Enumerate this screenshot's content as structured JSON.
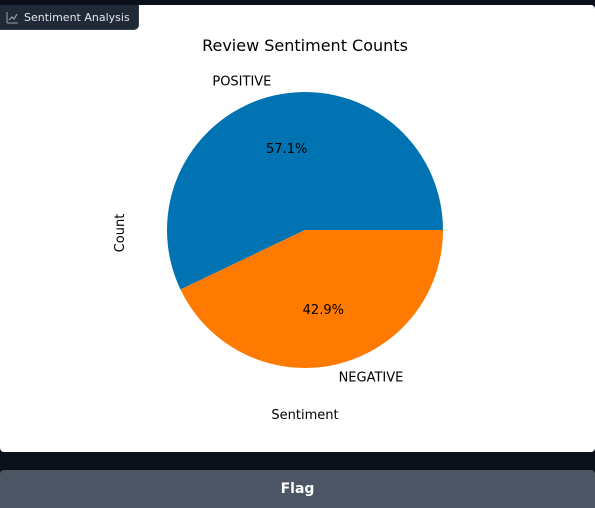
{
  "plot_label": {
    "text": "Sentiment Analysis",
    "icon": "chart-icon"
  },
  "chart_data": {
    "type": "pie",
    "title": "Review Sentiment Counts",
    "xlabel": "Sentiment",
    "ylabel": "Count",
    "categories": [
      "POSITIVE",
      "NEGATIVE"
    ],
    "values": [
      57.1,
      42.9
    ],
    "value_labels": [
      "57.1%",
      "42.9%"
    ],
    "colors": [
      "#0173b2",
      "#ff7a00"
    ],
    "legend": false
  },
  "flag_button": {
    "label": "Flag"
  }
}
